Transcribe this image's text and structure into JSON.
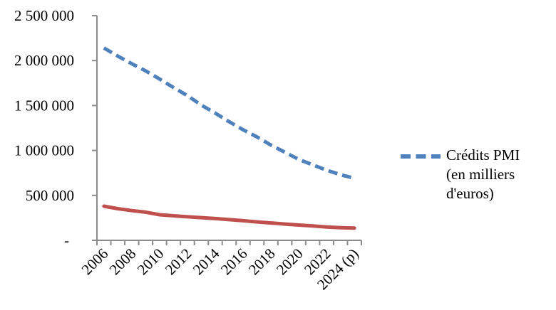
{
  "chart_data": {
    "type": "line",
    "title": "",
    "categories": [
      "2006",
      "2007",
      "2008",
      "2009",
      "2010",
      "2011",
      "2012",
      "2013",
      "2014",
      "2015",
      "2016",
      "2017",
      "2018",
      "2019",
      "2020",
      "2021",
      "2022",
      "2023",
      "2024 (p)"
    ],
    "visible_x_tick_labels": [
      "2006",
      "2008",
      "2010",
      "2012",
      "2014",
      "2016",
      "2018",
      "2020",
      "2022",
      "2024 (p)"
    ],
    "y_axis": {
      "min": 0,
      "max": 2500000,
      "step": 500000,
      "tick_labels": [
        "-",
        "500 000",
        "1 000 000",
        "1 500 000",
        "2 000 000",
        "2 500 000"
      ]
    },
    "series": [
      {
        "name": "Crédits PMI (en milliers d'euros)",
        "color": "#4F81BD",
        "line_style": "dashed",
        "values": [
          2140000,
          2050000,
          1965000,
          1885000,
          1795000,
          1700000,
          1610000,
          1505000,
          1415000,
          1320000,
          1230000,
          1150000,
          1060000,
          980000,
          900000,
          840000,
          780000,
          730000,
          690000
        ]
      },
      {
        "name": "",
        "color": "#C0504D",
        "line_style": "solid",
        "values": [
          380000,
          352000,
          331000,
          313000,
          285000,
          273000,
          262000,
          252000,
          242000,
          230000,
          218000,
          205000,
          193000,
          181000,
          170000,
          160000,
          149000,
          141000,
          136000
        ]
      }
    ],
    "grid": false,
    "legend_position": "right-middle",
    "axis_color": "#8C8C8C",
    "text_color": "#000000"
  },
  "legend": {
    "swatch_icon": "blue-dashed-line",
    "lines": [
      "Crédits PMI",
      "(en milliers",
      "d'euros)"
    ]
  }
}
